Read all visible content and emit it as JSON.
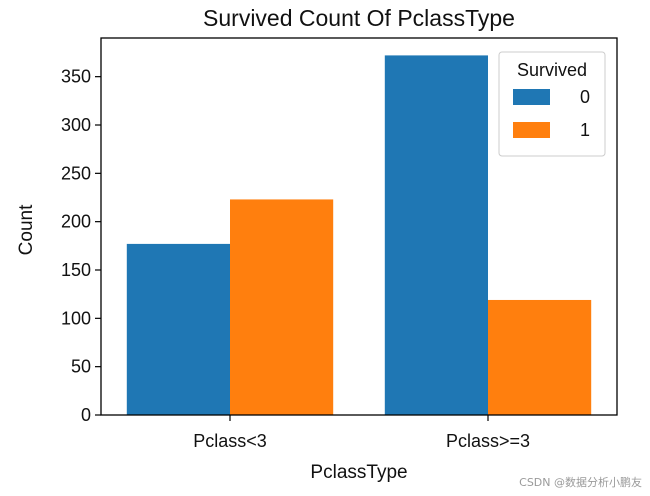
{
  "chart_data": {
    "type": "bar",
    "title": "Survived Count Of PclassType",
    "xlabel": "PclassType",
    "ylabel": "Count",
    "categories": [
      "Pclass<3",
      "Pclass>=3"
    ],
    "series": [
      {
        "name": "0",
        "values": [
          177,
          372
        ],
        "color": "#1f77b4"
      },
      {
        "name": "1",
        "values": [
          223,
          119
        ],
        "color": "#ff7f0e"
      }
    ],
    "ylim": [
      0,
      390
    ],
    "yticks": [
      0,
      50,
      100,
      150,
      200,
      250,
      300,
      350
    ],
    "legend": {
      "title": "Survived",
      "position": "top-right"
    },
    "grid": false
  },
  "watermark": "CSDN @数据分析小鹏友"
}
